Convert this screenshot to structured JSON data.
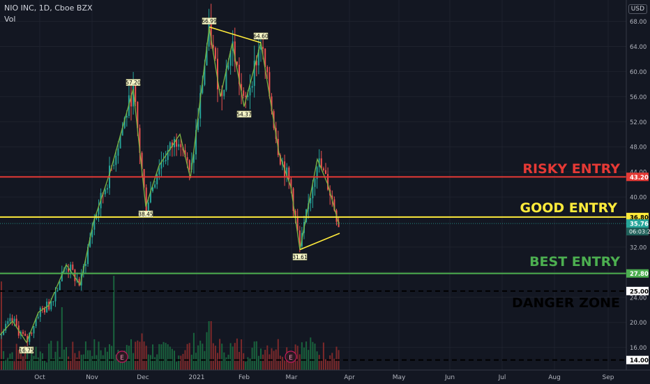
{
  "header": {
    "symbol_line": "NIO INC, 1D, Cboe BZX",
    "indicator": "Vol",
    "currency": "USD"
  },
  "colors": {
    "background": "#131722",
    "up": "#26a69a",
    "down": "#ef5350",
    "zigzag": "#7cb342",
    "risky": "#e53935",
    "good": "#ffeb3b",
    "best": "#4caf50",
    "danger": "#000000"
  },
  "chart_data": {
    "type": "candlestick",
    "x_ticks": [
      "Oct",
      "Nov",
      "Dec",
      "2021",
      "Feb",
      "Mar",
      "Apr",
      "May",
      "Jun",
      "Jul",
      "Aug",
      "Sep"
    ],
    "y_ticks": [
      "68.00",
      "64.00",
      "60.00",
      "56.00",
      "52.00",
      "48.00",
      "44.00",
      "40.00",
      "32.00",
      "28.00",
      "24.00",
      "20.00",
      "16.00"
    ],
    "ylim": [
      12.4,
      71.4
    ],
    "price_tags": [
      {
        "label": "43.20",
        "value": 43.2,
        "color": "#e53935"
      },
      {
        "label": "36.80",
        "value": 36.8,
        "color": "#ffeb3b"
      },
      {
        "label": "35.76",
        "value": 35.76,
        "color": "#26a69a"
      },
      {
        "label": "27.80",
        "value": 27.8,
        "color": "#4caf50"
      },
      {
        "label": "25.00",
        "value": 25.0,
        "color": "#ffffff"
      },
      {
        "label": "14.00",
        "value": 14.0,
        "color": "#ffffff"
      }
    ],
    "countdown": "06:03:2",
    "levels": [
      {
        "name": "RISKY ENTRY",
        "value": 43.2,
        "color": "#e53935",
        "style": "solid"
      },
      {
        "name": "GOOD ENTRY",
        "value": 36.8,
        "color": "#ffeb3b",
        "style": "solid"
      },
      {
        "name": "BEST ENTRY",
        "value": 27.8,
        "color": "#4caf50",
        "style": "solid"
      },
      {
        "name": "DANGER ZONE",
        "value": 25.0,
        "color": "#000000",
        "style": "dashed"
      },
      {
        "name": "",
        "value": 14.0,
        "color": "#000000",
        "style": "dashed"
      }
    ],
    "pivots": [
      {
        "label": "16.75",
        "x": 38,
        "value": 16.75
      },
      {
        "label": "57.20",
        "x": 191,
        "value": 57.2
      },
      {
        "label": "38.45",
        "x": 209,
        "value": 38.45
      },
      {
        "label": "66.99",
        "x": 300,
        "value": 66.99
      },
      {
        "label": "54.37",
        "x": 350,
        "value": 54.37
      },
      {
        "label": "64.60",
        "x": 374,
        "value": 64.6
      },
      {
        "label": "31.61",
        "x": 430,
        "value": 31.61
      }
    ],
    "zigzag": [
      [
        0,
        18
      ],
      [
        18,
        20.2
      ],
      [
        38,
        16.8
      ],
      [
        55,
        21.6
      ],
      [
        70,
        22.7
      ],
      [
        95,
        29.2
      ],
      [
        115,
        26
      ],
      [
        134,
        36
      ],
      [
        158,
        44
      ],
      [
        191,
        57.2
      ],
      [
        209,
        38.45
      ],
      [
        228,
        45
      ],
      [
        258,
        50
      ],
      [
        273,
        43
      ],
      [
        300,
        67
      ],
      [
        316,
        56
      ],
      [
        333,
        64.5
      ],
      [
        350,
        54.4
      ],
      [
        374,
        64.6
      ],
      [
        400,
        47
      ],
      [
        417,
        41.6
      ],
      [
        430,
        31.6
      ],
      [
        455,
        46
      ],
      [
        470,
        42
      ],
      [
        486,
        35.6
      ]
    ],
    "trendlines": [
      {
        "from": [
          300,
          67.1
        ],
        "to": [
          374,
          64.6
        ]
      },
      {
        "from": [
          430,
          31.6
        ],
        "to": [
          487,
          34.2
        ]
      }
    ],
    "earnings_markers": [
      "E",
      "E"
    ],
    "earnings_x": [
      175,
      417
    ]
  }
}
